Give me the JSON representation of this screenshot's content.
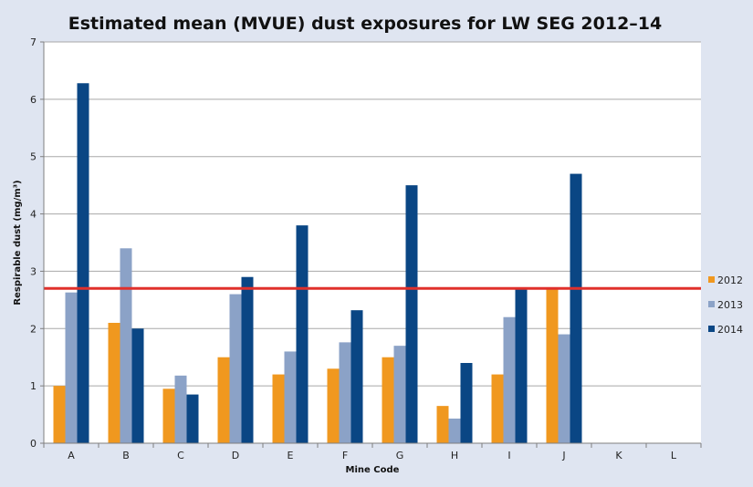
{
  "chart_data": {
    "type": "bar",
    "title": "Estimated mean (MVUE) dust exposures for LW SEG 2012–14",
    "xlabel": "Mine Code",
    "ylabel": "Respirable dust (mg/m³)",
    "ylim": [
      0,
      7
    ],
    "yticks": [
      "0",
      "1",
      "2",
      "3",
      "4",
      "5",
      "6",
      "7"
    ],
    "categories": [
      "A",
      "B",
      "C",
      "D",
      "E",
      "F",
      "G",
      "H",
      "I",
      "J",
      "K",
      "L"
    ],
    "series": [
      {
        "name": "2012",
        "color": "#f0981f",
        "values": [
          1.0,
          2.1,
          0.95,
          1.5,
          1.2,
          1.3,
          1.5,
          0.65,
          1.2,
          2.7,
          null,
          null
        ]
      },
      {
        "name": "2013",
        "color": "#8ba2c7",
        "values": [
          2.63,
          3.4,
          1.18,
          2.6,
          1.6,
          1.76,
          1.7,
          0.43,
          2.2,
          1.9,
          null,
          null
        ]
      },
      {
        "name": "2014",
        "color": "#0a4684",
        "values": [
          6.28,
          2.0,
          0.85,
          2.9,
          3.8,
          2.32,
          4.5,
          1.4,
          2.7,
          4.7,
          null,
          null
        ]
      }
    ],
    "reference_line": {
      "value": 2.7,
      "color": "#e0302b"
    },
    "grid": true,
    "legend_position": "right"
  }
}
